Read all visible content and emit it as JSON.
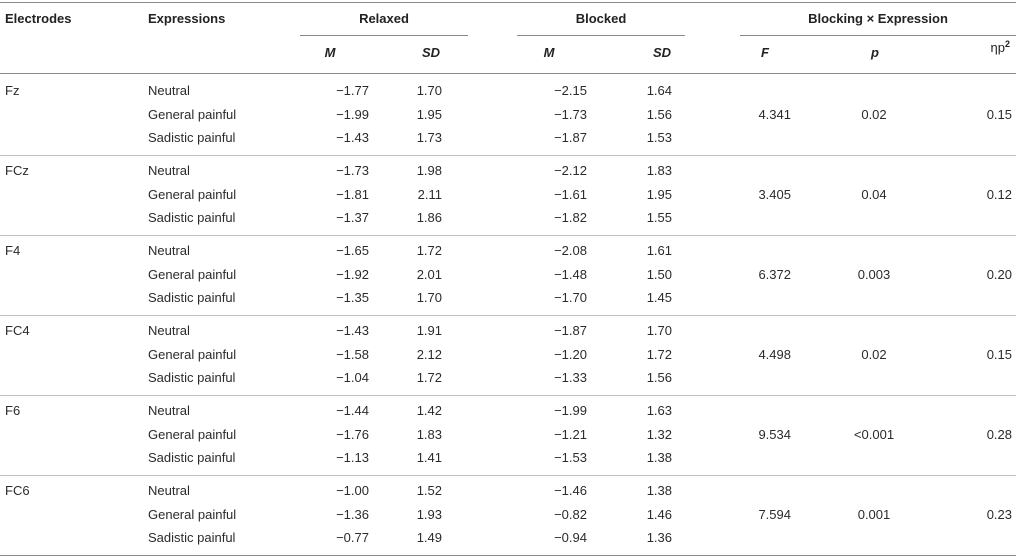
{
  "headers": {
    "electrodes": "Electrodes",
    "expressions": "Expressions",
    "relaxed": "Relaxed",
    "blocked": "Blocked",
    "interaction": "Blocking × Expression",
    "m": "M",
    "sd": "SD",
    "f": "F",
    "p": "p",
    "eta_base": "ηp",
    "eta_sup": "2"
  },
  "groups": [
    {
      "electrode": "Fz",
      "F": "4.341",
      "p": "0.02",
      "eta": "0.15",
      "rows": [
        {
          "expression": "Neutral",
          "relaxed_m": "−1.77",
          "relaxed_sd": "1.70",
          "blocked_m": "−2.15",
          "blocked_sd": "1.64"
        },
        {
          "expression": "General painful",
          "relaxed_m": "−1.99",
          "relaxed_sd": "1.95",
          "blocked_m": "−1.73",
          "blocked_sd": "1.56"
        },
        {
          "expression": "Sadistic painful",
          "relaxed_m": "−1.43",
          "relaxed_sd": "1.73",
          "blocked_m": "−1.87",
          "blocked_sd": "1.53"
        }
      ]
    },
    {
      "electrode": "FCz",
      "F": "3.405",
      "p": "0.04",
      "eta": "0.12",
      "rows": [
        {
          "expression": "Neutral",
          "relaxed_m": "−1.73",
          "relaxed_sd": "1.98",
          "blocked_m": "−2.12",
          "blocked_sd": "1.83"
        },
        {
          "expression": "General painful",
          "relaxed_m": "−1.81",
          "relaxed_sd": "2.11",
          "blocked_m": "−1.61",
          "blocked_sd": "1.95"
        },
        {
          "expression": "Sadistic painful",
          "relaxed_m": "−1.37",
          "relaxed_sd": "1.86",
          "blocked_m": "−1.82",
          "blocked_sd": "1.55"
        }
      ]
    },
    {
      "electrode": "F4",
      "F": "6.372",
      "p": "0.003",
      "eta": "0.20",
      "rows": [
        {
          "expression": "Neutral",
          "relaxed_m": "−1.65",
          "relaxed_sd": "1.72",
          "blocked_m": "−2.08",
          "blocked_sd": "1.61"
        },
        {
          "expression": "General painful",
          "relaxed_m": "−1.92",
          "relaxed_sd": "2.01",
          "blocked_m": "−1.48",
          "blocked_sd": "1.50"
        },
        {
          "expression": "Sadistic painful",
          "relaxed_m": "−1.35",
          "relaxed_sd": "1.70",
          "blocked_m": "−1.70",
          "blocked_sd": "1.45"
        }
      ]
    },
    {
      "electrode": "FC4",
      "F": "4.498",
      "p": "0.02",
      "eta": "0.15",
      "rows": [
        {
          "expression": "Neutral",
          "relaxed_m": "−1.43",
          "relaxed_sd": "1.91",
          "blocked_m": "−1.87",
          "blocked_sd": "1.70"
        },
        {
          "expression": "General painful",
          "relaxed_m": "−1.58",
          "relaxed_sd": "2.12",
          "blocked_m": "−1.20",
          "blocked_sd": "1.72"
        },
        {
          "expression": "Sadistic painful",
          "relaxed_m": "−1.04",
          "relaxed_sd": "1.72",
          "blocked_m": "−1.33",
          "blocked_sd": "1.56"
        }
      ]
    },
    {
      "electrode": "F6",
      "F": "9.534",
      "p": "<0.001",
      "eta": "0.28",
      "rows": [
        {
          "expression": "Neutral",
          "relaxed_m": "−1.44",
          "relaxed_sd": "1.42",
          "blocked_m": "−1.99",
          "blocked_sd": "1.63"
        },
        {
          "expression": "General painful",
          "relaxed_m": "−1.76",
          "relaxed_sd": "1.83",
          "blocked_m": "−1.21",
          "blocked_sd": "1.32"
        },
        {
          "expression": "Sadistic painful",
          "relaxed_m": "−1.13",
          "relaxed_sd": "1.41",
          "blocked_m": "−1.53",
          "blocked_sd": "1.38"
        }
      ]
    },
    {
      "electrode": "FC6",
      "F": "7.594",
      "p": "0.001",
      "eta": "0.23",
      "rows": [
        {
          "expression": "Neutral",
          "relaxed_m": "−1.00",
          "relaxed_sd": "1.52",
          "blocked_m": "−1.46",
          "blocked_sd": "1.38"
        },
        {
          "expression": "General painful",
          "relaxed_m": "−1.36",
          "relaxed_sd": "1.93",
          "blocked_m": "−0.82",
          "blocked_sd": "1.46"
        },
        {
          "expression": "Sadistic painful",
          "relaxed_m": "−0.77",
          "relaxed_sd": "1.49",
          "blocked_m": "−0.94",
          "blocked_sd": "1.36"
        }
      ]
    }
  ]
}
